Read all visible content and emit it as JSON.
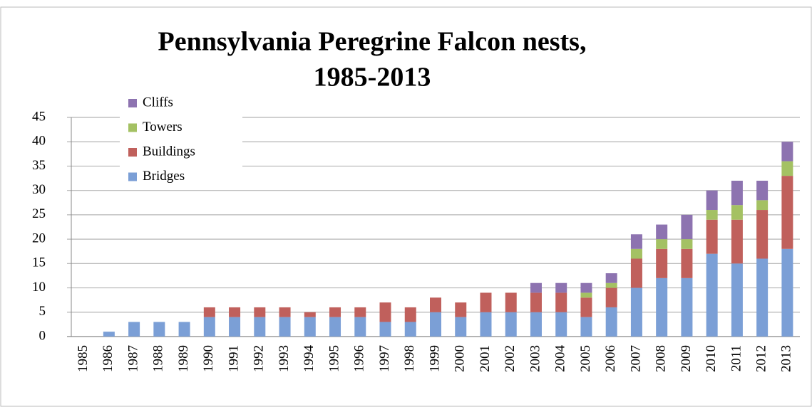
{
  "chart_data": {
    "type": "bar",
    "stacked": true,
    "title": [
      "Pennsylvania Peregrine Falcon nests,",
      "1985-2013"
    ],
    "categories": [
      "1985",
      "1986",
      "1987",
      "1988",
      "1989",
      "1990",
      "1991",
      "1992",
      "1993",
      "1994",
      "1995",
      "1996",
      "1997",
      "1998",
      "1999",
      "2000",
      "2001",
      "2002",
      "2003",
      "2004",
      "2005",
      "2006",
      "2007",
      "2008",
      "2009",
      "2010",
      "2011",
      "2012",
      "2013"
    ],
    "series": [
      {
        "name": "Bridges",
        "color": "#7b9fd6",
        "values": [
          0,
          1,
          3,
          3,
          3,
          4,
          4,
          4,
          4,
          4,
          4,
          4,
          3,
          3,
          5,
          4,
          5,
          5,
          5,
          5,
          4,
          6,
          10,
          12,
          12,
          17,
          15,
          16,
          18
        ]
      },
      {
        "name": "Buildings",
        "color": "#c0605c",
        "values": [
          0,
          0,
          0,
          0,
          0,
          2,
          2,
          2,
          2,
          1,
          2,
          2,
          4,
          3,
          3,
          3,
          4,
          4,
          4,
          4,
          4,
          4,
          6,
          6,
          6,
          7,
          9,
          10,
          15
        ]
      },
      {
        "name": "Towers",
        "color": "#a4c163",
        "values": [
          0,
          0,
          0,
          0,
          0,
          0,
          0,
          0,
          0,
          0,
          0,
          0,
          0,
          0,
          0,
          0,
          0,
          0,
          0,
          0,
          1,
          1,
          2,
          2,
          2,
          2,
          3,
          2,
          3
        ]
      },
      {
        "name": "Cliffs",
        "color": "#8d73b0",
        "values": [
          0,
          0,
          0,
          0,
          0,
          0,
          0,
          0,
          0,
          0,
          0,
          0,
          0,
          0,
          0,
          0,
          0,
          0,
          2,
          2,
          2,
          2,
          3,
          3,
          5,
          4,
          5,
          4,
          4
        ]
      }
    ],
    "ylim": [
      0,
      45
    ],
    "yticks": [
      0,
      5,
      10,
      15,
      20,
      25,
      30,
      35,
      40,
      45
    ],
    "grid": true,
    "legend": "upper left"
  }
}
